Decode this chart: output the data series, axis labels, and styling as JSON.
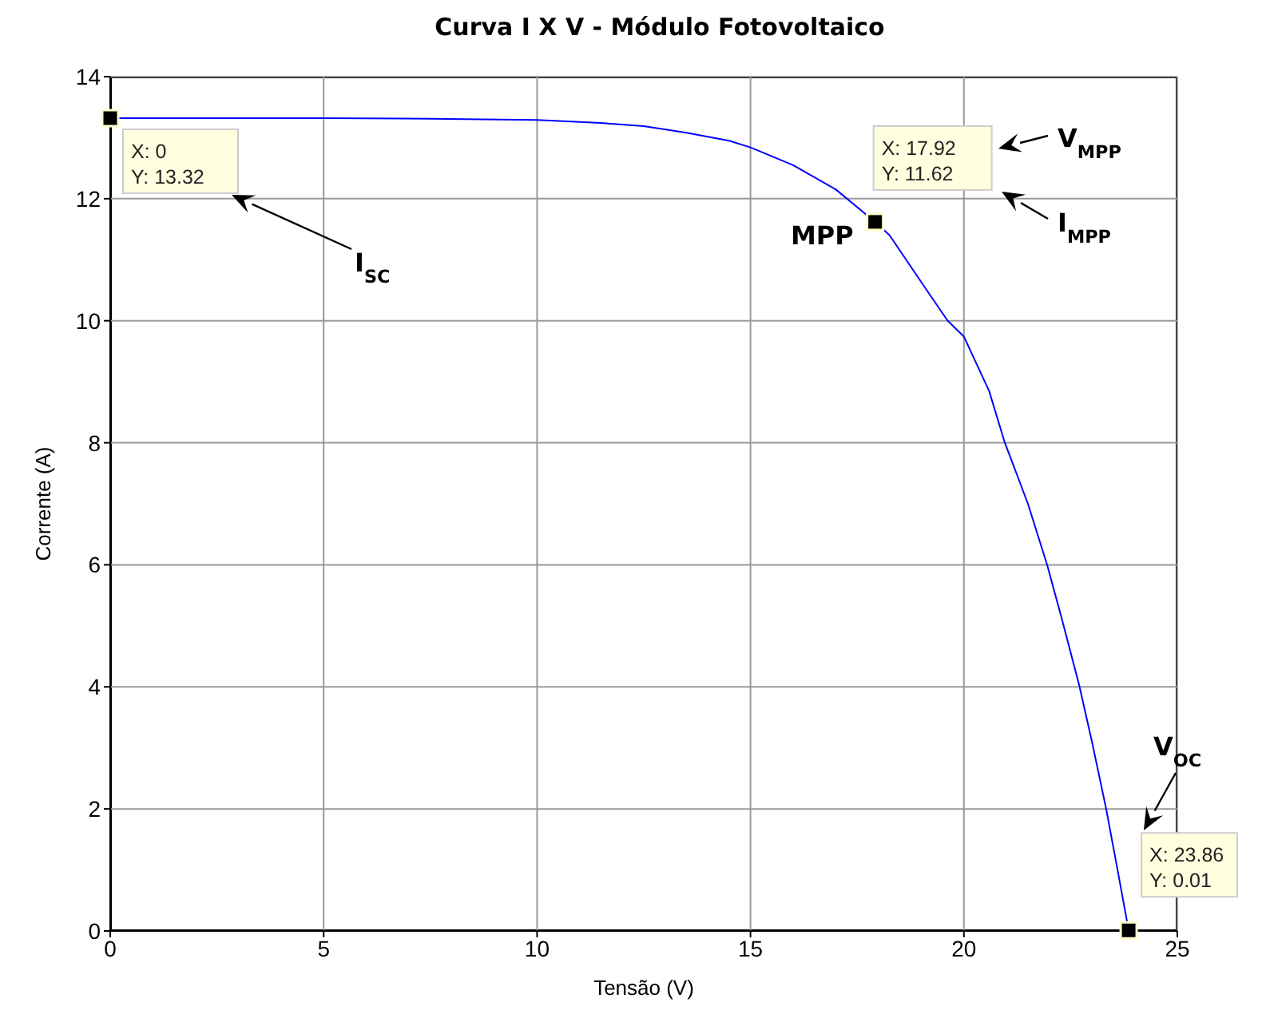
{
  "chart_data": {
    "type": "line",
    "title": "Curva I X V - Módulo Fotovoltaico",
    "xlabel": "Tensão (V)",
    "ylabel": "Corrente (A)",
    "xlim": [
      0,
      25
    ],
    "xticks": [
      0,
      5,
      10,
      15,
      20,
      25
    ],
    "ylim": [
      0,
      14
    ],
    "yticks": [
      0,
      2,
      4,
      6,
      8,
      10,
      12,
      14
    ],
    "grid": true,
    "series": [
      {
        "color": "#0000ff",
        "marker": "none",
        "x": [
          0,
          2.5,
          5,
          7.5,
          10,
          11.5,
          12.5,
          13.5,
          14.5,
          15,
          16,
          17,
          17.92,
          18.26,
          19.13,
          19.62,
          20,
          20.59,
          20.95,
          21.5,
          21.95,
          22.3,
          22.7,
          23.0,
          23.33,
          23.6,
          23.86
        ],
        "values": [
          13.32,
          13.32,
          13.32,
          13.31,
          13.29,
          13.24,
          13.19,
          13.08,
          12.95,
          12.84,
          12.55,
          12.15,
          11.62,
          11.4,
          10.5,
          10.0,
          9.74,
          8.85,
          8.02,
          7.0,
          6.0,
          5.1,
          4.03,
          3.1,
          2.01,
          1.0,
          0.01
        ]
      },
      {
        "type": "scatter",
        "color": "#000000",
        "marker": "square",
        "x": [
          0,
          17.92,
          23.86
        ],
        "values": [
          13.32,
          11.62,
          0.01
        ]
      }
    ],
    "annotations": [
      {
        "text": "X: 0\nY: 13.32",
        "x": 0,
        "y": 13.32
      },
      {
        "text": "X: 17.92\nY: 11.62",
        "x": 17.92,
        "y": 11.62
      },
      {
        "text": "X: 23.86\nY: 0.01",
        "x": 23.86,
        "y": 0.01
      },
      "I$_{SC}$",
      "MPP",
      "V$_{MPP}$",
      "I$_{MPP}$",
      "V$_{OC}$"
    ]
  }
}
